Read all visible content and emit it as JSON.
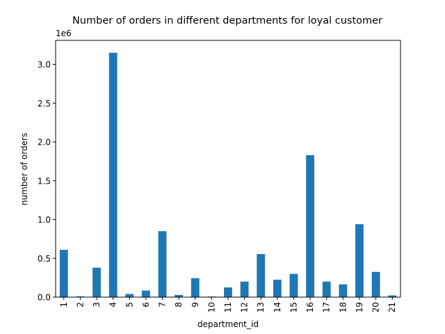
{
  "chart_data": {
    "type": "bar",
    "title": "Number of orders in different departments for loyal customer",
    "xlabel": "department_id",
    "ylabel": "number of orders",
    "y_multiplier_label": "1e6",
    "categories": [
      "1",
      "2",
      "3",
      "4",
      "5",
      "6",
      "7",
      "8",
      "9",
      "10",
      "11",
      "12",
      "13",
      "14",
      "15",
      "16",
      "17",
      "18",
      "19",
      "20",
      "21"
    ],
    "values": [
      610000,
      10000,
      380000,
      3150000,
      40000,
      85000,
      850000,
      28000,
      245000,
      8000,
      125000,
      200000,
      555000,
      225000,
      300000,
      1830000,
      200000,
      165000,
      940000,
      325000,
      22000
    ],
    "ylim": [
      0,
      3310000
    ],
    "yticks": [
      0.0,
      0.5,
      1.0,
      1.5,
      2.0,
      2.5,
      3.0
    ],
    "ytick_labels": [
      "0.0",
      "0.5",
      "1.0",
      "1.5",
      "2.0",
      "2.5",
      "3.0"
    ],
    "bar_color": "#1f77b4",
    "grid": false,
    "legend": "none"
  }
}
